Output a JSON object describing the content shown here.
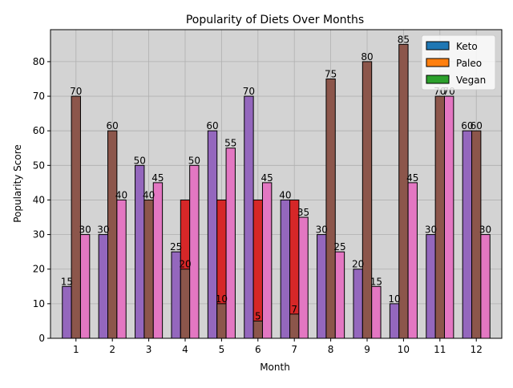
{
  "chart_data": {
    "type": "bar",
    "title": "Popularity of Diets Over Months",
    "xlabel": "Month",
    "ylabel": "Popularity Score",
    "categories": [
      "1",
      "2",
      "3",
      "4",
      "5",
      "6",
      "7",
      "8",
      "9",
      "10",
      "11",
      "12"
    ],
    "ylim": [
      0,
      89.25
    ],
    "yticks": [
      0,
      10,
      20,
      30,
      40,
      50,
      60,
      70,
      80
    ],
    "grid": true,
    "legend_position": "upper-right",
    "legend": [
      {
        "name": "Keto",
        "color": "#1f77b4"
      },
      {
        "name": "Paleo",
        "color": "#ff7f0e"
      },
      {
        "name": "Vegan",
        "color": "#2ca02c"
      }
    ],
    "layers": [
      {
        "role": "back-pair",
        "left": 15,
        "right": 70,
        "left_label": "15",
        "right_label": "70"
      },
      {
        "role": "back-pair",
        "left": 30,
        "right": 60,
        "left_label": "30",
        "right_label": "60"
      },
      {
        "role": "back-pair",
        "left": 50,
        "right": 40,
        "left_label": "50",
        "right_label": "40"
      },
      {
        "role": "back-pair",
        "left": 25,
        "right": 20,
        "left_label": "25",
        "right_label": "20"
      },
      {
        "role": "back-pair",
        "left": 60,
        "right": 10,
        "left_label": "60",
        "right_label": "10"
      },
      {
        "role": "back-pair",
        "left": 70,
        "right": 5,
        "left_label": "70",
        "right_label": "5"
      },
      {
        "role": "back-pair",
        "left": 40,
        "right": 7,
        "left_label": "40",
        "right_label": "7"
      },
      {
        "role": "back-pair",
        "left": 30,
        "right": 75,
        "left_label": "30",
        "right_label": "75"
      },
      {
        "role": "back-pair",
        "left": 20,
        "right": 80,
        "left_label": "20",
        "right_label": "80"
      },
      {
        "role": "back-pair",
        "left": 10,
        "right": 85,
        "left_label": "10",
        "right_label": "85"
      },
      {
        "role": "back-pair",
        "left": 30,
        "right": 70,
        "left_label": "30",
        "right_label": "70"
      },
      {
        "role": "back-pair",
        "left": 60,
        "right": 60,
        "left_label": "60",
        "right_label": "60"
      }
    ],
    "series": [
      {
        "values_left": [
          15,
          30,
          50,
          25,
          60,
          70,
          40,
          30,
          20,
          10,
          30,
          60
        ],
        "values_mid": [
          70,
          60,
          40,
          20,
          10,
          5,
          7,
          75,
          80,
          85,
          70,
          60
        ],
        "values_red": [
          0,
          0,
          0,
          40,
          40,
          40,
          40,
          0,
          0,
          0,
          0,
          0
        ],
        "values_right": [
          30,
          40,
          45,
          50,
          55,
          45,
          35,
          25,
          15,
          45,
          70,
          30
        ]
      }
    ],
    "label_strings": {
      "left": [
        "15",
        "30",
        "50",
        "25",
        "60",
        "70",
        "40",
        "30",
        "20",
        "10",
        "30",
        "60"
      ],
      "mid": [
        "70",
        "60",
        "40",
        "20",
        "10",
        "5",
        "7",
        "75",
        "80",
        "85",
        "70",
        "60"
      ],
      "right": [
        "30",
        "40",
        "45",
        "50",
        "55",
        "45",
        "35",
        "25",
        "15",
        "45",
        "70",
        "30"
      ]
    },
    "colors": {
      "left": "#9467bd",
      "mid": "#8c564b",
      "red": "#d62728",
      "right": "#e377c2",
      "axes_bg": "#d3d3d3",
      "grid": "#b0b0b0"
    }
  }
}
